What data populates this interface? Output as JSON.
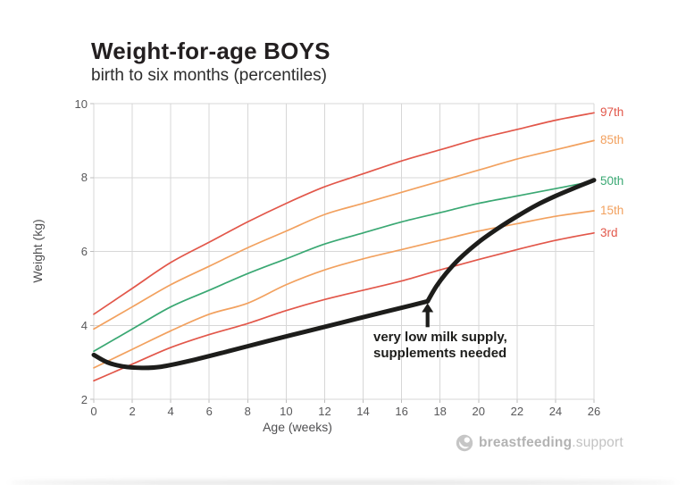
{
  "header": {
    "title": "Weight-for-age BOYS",
    "subtitle": "birth to six months (percentiles)"
  },
  "chart_data": {
    "type": "line",
    "title": "Weight-for-age BOYS",
    "subtitle": "birth to six months (percentiles)",
    "xlabel": "Age (weeks)",
    "ylabel": "Weight (kg)",
    "xlim": [
      0,
      26
    ],
    "ylim": [
      2,
      10
    ],
    "x_ticks": [
      0,
      2,
      4,
      6,
      8,
      10,
      12,
      14,
      16,
      18,
      20,
      22,
      24,
      26
    ],
    "y_ticks": [
      2,
      4,
      6,
      8,
      10
    ],
    "grid": true,
    "legend_position": "right-of-curves",
    "x": [
      0,
      2,
      4,
      6,
      8,
      10,
      12,
      14,
      16,
      18,
      20,
      22,
      24,
      26
    ],
    "series": [
      {
        "name": "97th",
        "role": "percentile",
        "color": "#e2574a",
        "values": [
          4.3,
          5.0,
          5.7,
          6.25,
          6.8,
          7.3,
          7.75,
          8.1,
          8.45,
          8.75,
          9.05,
          9.3,
          9.55,
          9.75
        ]
      },
      {
        "name": "85th",
        "role": "percentile",
        "color": "#f2a15f",
        "values": [
          3.9,
          4.5,
          5.1,
          5.6,
          6.1,
          6.55,
          7.0,
          7.3,
          7.6,
          7.9,
          8.2,
          8.5,
          8.75,
          9.0
        ]
      },
      {
        "name": "50th",
        "role": "percentile",
        "color": "#3aa873",
        "values": [
          3.3,
          3.9,
          4.5,
          4.95,
          5.4,
          5.8,
          6.2,
          6.5,
          6.8,
          7.05,
          7.3,
          7.5,
          7.7,
          7.9
        ]
      },
      {
        "name": "15th",
        "role": "percentile",
        "color": "#f2a15f",
        "values": [
          2.85,
          3.35,
          3.85,
          4.3,
          4.6,
          5.1,
          5.5,
          5.8,
          6.05,
          6.3,
          6.55,
          6.75,
          6.95,
          7.1
        ]
      },
      {
        "name": "3rd",
        "role": "percentile",
        "color": "#e2574a",
        "values": [
          2.5,
          2.95,
          3.4,
          3.75,
          4.05,
          4.4,
          4.7,
          4.95,
          5.2,
          5.5,
          5.78,
          6.05,
          6.3,
          6.5
        ]
      }
    ],
    "baby_line": {
      "name": "baby weight curve",
      "color": "#1d1d1b",
      "width": 5,
      "segments": [
        [
          [
            0,
            3.2
          ],
          [
            0.7,
            3.0
          ],
          [
            1.5,
            2.89
          ],
          [
            2.5,
            2.85
          ],
          [
            3.5,
            2.88
          ],
          [
            5,
            3.04
          ],
          [
            7,
            3.3
          ],
          [
            9,
            3.57
          ],
          [
            11,
            3.83
          ],
          [
            13,
            4.09
          ],
          [
            15,
            4.35
          ],
          [
            16.5,
            4.54
          ],
          [
            17.35,
            4.65
          ]
        ],
        [
          [
            17.35,
            4.65
          ],
          [
            17.8,
            5.05
          ],
          [
            18.3,
            5.4
          ],
          [
            19,
            5.8
          ],
          [
            20,
            6.25
          ],
          [
            21,
            6.62
          ],
          [
            22,
            6.95
          ],
          [
            23,
            7.25
          ],
          [
            24,
            7.5
          ],
          [
            25,
            7.72
          ],
          [
            26,
            7.93
          ]
        ]
      ]
    },
    "annotation": {
      "line1": "very low milk supply,",
      "line2": "supplements needed",
      "arrow_week": 17.35,
      "arrow_from_kg": 3.95,
      "arrow_to_kg": 4.55
    }
  },
  "footer": {
    "brand_bold": "breastfeeding",
    "brand_light": ".support"
  },
  "colors": {
    "percentile_red": "#e2574a",
    "percentile_orange": "#f2a15f",
    "percentile_green": "#3aa873",
    "baby_line": "#1d1d1b",
    "grid": "#d7d7d7",
    "tick_text": "#58585a",
    "logo_gray": "#c2c2c2"
  }
}
